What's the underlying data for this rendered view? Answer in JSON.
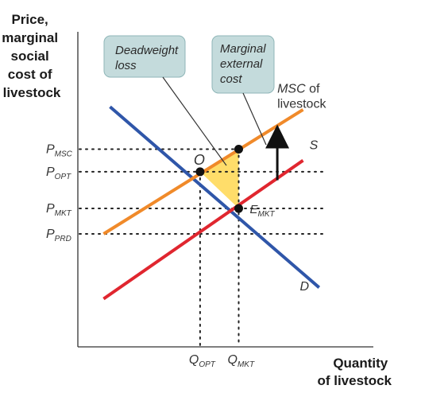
{
  "chart_data": {
    "type": "line",
    "title": "",
    "ylabel": [
      "Price,",
      "marginal",
      "social",
      "cost of",
      "livestock"
    ],
    "xlabel": [
      "Quantity",
      "of livestock"
    ],
    "ylim": [
      0,
      10
    ],
    "xlim": [
      0,
      10
    ],
    "price_ticks": [
      {
        "main": "P",
        "sub": "MSC",
        "y": 7.0
      },
      {
        "main": "P",
        "sub": "OPT",
        "y": 6.2
      },
      {
        "main": "P",
        "sub": "MKT",
        "y": 4.9
      },
      {
        "main": "P",
        "sub": "PRD",
        "y": 4.0
      }
    ],
    "quantity_ticks": [
      {
        "main": "Q",
        "sub": "OPT",
        "x": 3.8
      },
      {
        "main": "Q",
        "sub": "MKT",
        "x": 5.0
      }
    ],
    "series": [
      {
        "name": "D",
        "color": "#2f56a9",
        "points": [
          [
            1.0,
            8.5
          ],
          [
            7.5,
            2.1
          ]
        ]
      },
      {
        "name": "MSC of livestock",
        "color": "#f08a2a",
        "points": [
          [
            0.8,
            4.0
          ],
          [
            7.0,
            8.4
          ]
        ]
      },
      {
        "name": "S",
        "color": "#e0262f",
        "points": [
          [
            0.8,
            1.7
          ],
          [
            7.0,
            6.6
          ]
        ]
      }
    ],
    "curve_labels": [
      {
        "italic": "MSC",
        "rest": " of",
        "line2": "livestock",
        "x": 6.2,
        "y": 9.0
      },
      {
        "italic": "S",
        "rest": "",
        "line2": "",
        "x": 7.2,
        "y": 7.0
      },
      {
        "italic": "D",
        "rest": "",
        "line2": "",
        "x": 6.9,
        "y": 2.0
      }
    ],
    "points": [
      {
        "label": "O",
        "sub": "",
        "x": 3.8,
        "y": 6.2
      },
      {
        "label": "E",
        "sub": "MKT",
        "x": 5.0,
        "y": 4.9
      },
      {
        "label": "",
        "sub": "",
        "x": 5.0,
        "y": 7.0
      }
    ],
    "deadweight_triangle": [
      [
        3.8,
        6.2
      ],
      [
        5.0,
        7.0
      ],
      [
        5.0,
        4.9
      ]
    ],
    "triangle_color": "#ffd95a",
    "annotations": [
      {
        "lines": [
          "Deadweight",
          "loss"
        ]
      },
      {
        "lines": [
          "Marginal",
          "external",
          "cost"
        ]
      }
    ],
    "grid": false
  }
}
